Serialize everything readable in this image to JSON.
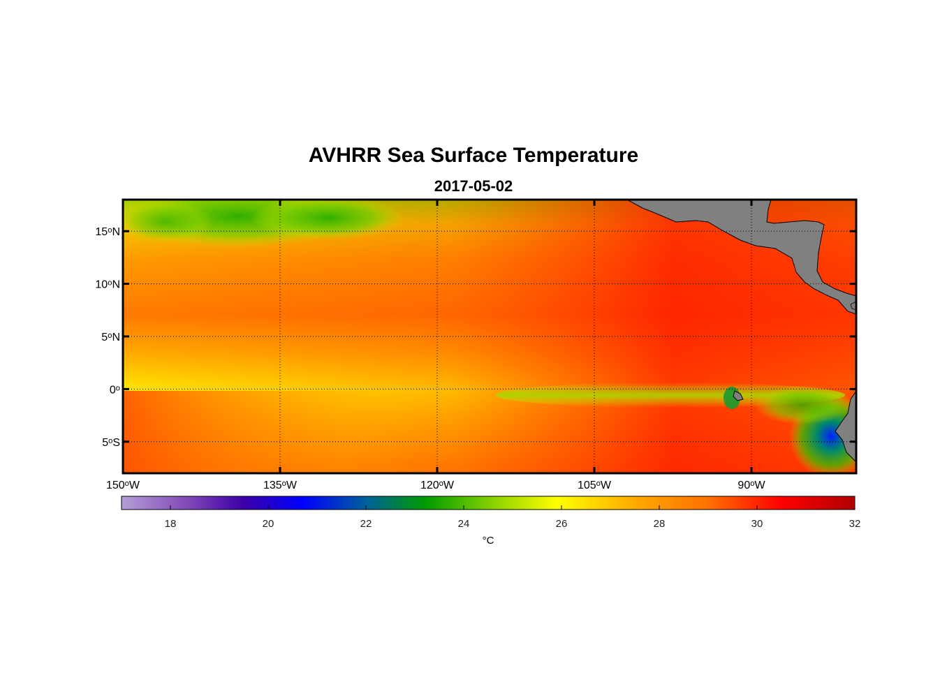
{
  "title": "AVHRR Sea Surface Temperature",
  "date": "2017-05-02",
  "map": {
    "lon_range": [
      -150,
      -80
    ],
    "lat_range": [
      -8,
      18
    ],
    "lon_ticks": [
      {
        "value": -150,
        "deg": "150",
        "hem": "W"
      },
      {
        "value": -135,
        "deg": "135",
        "hem": "W"
      },
      {
        "value": -120,
        "deg": "120",
        "hem": "W"
      },
      {
        "value": -105,
        "deg": "105",
        "hem": "W"
      },
      {
        "value": -90,
        "deg": "90",
        "hem": "W"
      }
    ],
    "lat_ticks": [
      {
        "value": 15,
        "deg": "15",
        "hem": "N"
      },
      {
        "value": 10,
        "deg": "10",
        "hem": "N"
      },
      {
        "value": 5,
        "deg": "5",
        "hem": "N"
      },
      {
        "value": 0,
        "deg": "0",
        "hem": ""
      },
      {
        "value": -5,
        "deg": "5",
        "hem": "S"
      }
    ],
    "land_color": "#808080",
    "land_label": "Central America / South America coastline"
  },
  "colorbar": {
    "min": 17,
    "max": 32,
    "ticks": [
      "18",
      "20",
      "22",
      "24",
      "26",
      "28",
      "30",
      "32"
    ],
    "unit": "°C",
    "stops": [
      {
        "value": 17,
        "color": "#b59fd6"
      },
      {
        "value": 18.5,
        "color": "#7a3fb5"
      },
      {
        "value": 19.5,
        "color": "#3a00a8"
      },
      {
        "value": 20.7,
        "color": "#0000ff"
      },
      {
        "value": 22.0,
        "color": "#00609a"
      },
      {
        "value": 23.2,
        "color": "#009a00"
      },
      {
        "value": 24.5,
        "color": "#7fcf00"
      },
      {
        "value": 25.9,
        "color": "#ffff00"
      },
      {
        "value": 27.5,
        "color": "#ffaa00"
      },
      {
        "value": 29.0,
        "color": "#ff7000"
      },
      {
        "value": 30.5,
        "color": "#ff0000"
      },
      {
        "value": 32,
        "color": "#b00000"
      }
    ]
  }
}
